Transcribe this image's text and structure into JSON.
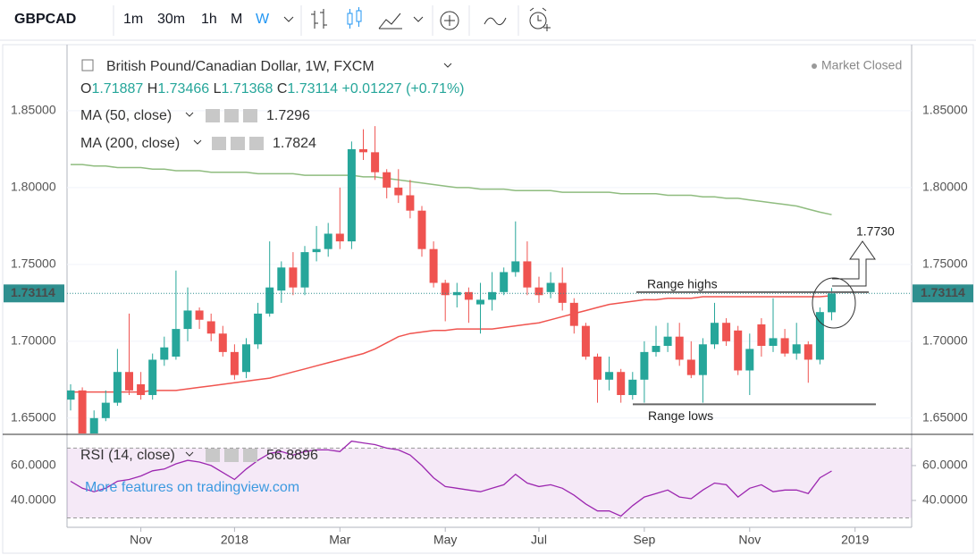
{
  "toolbar": {
    "symbol": "GBPCAD",
    "intervals": [
      "1m",
      "30m",
      "1h",
      "M",
      "W"
    ]
  },
  "legend": {
    "o": "O",
    "h": "H",
    "l": "L",
    "c": "C",
    "change": "+0.01227",
    "change_pct": "(+0.71%)",
    "status": "Market Closed"
  },
  "chart_data": [
    {
      "type": "candlestick",
      "title": "British Pound/Canadian Dollar, 1W, FXCM",
      "categories": [
        null,
        null,
        null,
        null,
        null,
        null,
        "Nov",
        null,
        null,
        null,
        null,
        null,
        null,
        null,
        "2018",
        null,
        null,
        null,
        null,
        null,
        null,
        null,
        null,
        "Mar",
        null,
        null,
        null,
        null,
        null,
        null,
        null,
        null,
        "May",
        null,
        null,
        null,
        null,
        null,
        null,
        null,
        "Jul",
        null,
        null,
        null,
        null,
        null,
        null,
        null,
        null,
        "Sep",
        null,
        null,
        null,
        null,
        null,
        null,
        null,
        null,
        "Nov",
        null,
        null,
        null,
        null,
        null,
        null,
        null,
        null,
        "2019"
      ],
      "open": [
        1.662,
        1.668,
        1.64,
        1.65,
        1.66,
        1.68,
        1.672,
        1.665,
        1.688,
        1.69,
        1.708,
        1.72,
        1.713,
        1.705,
        1.693,
        1.68,
        1.698,
        1.718,
        1.733,
        1.748,
        1.735,
        1.758,
        1.76,
        1.77,
        1.765,
        1.825,
        1.823,
        1.81,
        1.8,
        1.795,
        1.785,
        1.76,
        1.738,
        1.73,
        1.732,
        1.724,
        1.727,
        1.732,
        1.745,
        1.752,
        1.735,
        1.732,
        1.738,
        1.725,
        1.71,
        1.69,
        1.675,
        1.68,
        1.665,
        1.675,
        1.693,
        1.697,
        1.703,
        1.688,
        1.678,
        1.698,
        1.712,
        1.707,
        1.681,
        1.711,
        1.697,
        1.702,
        1.692,
        1.698,
        1.688,
        1.71887,
        null,
        null
      ],
      "high": [
        1.672,
        1.67,
        1.655,
        1.668,
        1.695,
        1.718,
        1.68,
        1.692,
        1.703,
        1.746,
        1.735,
        1.722,
        1.718,
        1.71,
        1.698,
        1.702,
        1.725,
        1.765,
        1.752,
        1.758,
        1.762,
        1.775,
        1.777,
        1.8,
        1.83,
        1.838,
        1.84,
        1.812,
        1.812,
        1.805,
        1.788,
        1.765,
        1.74,
        1.738,
        1.735,
        1.738,
        1.745,
        1.748,
        1.778,
        1.765,
        1.742,
        1.745,
        1.748,
        1.728,
        1.712,
        1.692,
        1.69,
        1.682,
        1.68,
        1.7,
        1.71,
        1.712,
        1.712,
        1.7,
        1.702,
        1.725,
        1.715,
        1.71,
        1.705,
        1.715,
        1.728,
        1.708,
        1.712,
        1.7,
        1.722,
        1.73466,
        null,
        null
      ],
      "low": [
        1.655,
        1.632,
        1.635,
        1.648,
        1.658,
        1.665,
        1.662,
        1.662,
        1.684,
        1.688,
        1.7,
        1.708,
        1.7,
        1.69,
        1.675,
        1.676,
        1.695,
        1.716,
        1.725,
        1.73,
        1.73,
        1.752,
        1.755,
        1.76,
        1.76,
        1.818,
        1.805,
        1.793,
        1.79,
        1.78,
        1.755,
        1.735,
        1.713,
        1.722,
        1.712,
        1.705,
        1.72,
        1.73,
        1.742,
        1.73,
        1.725,
        1.728,
        1.72,
        1.705,
        1.688,
        1.66,
        1.668,
        1.66,
        1.662,
        1.66,
        1.69,
        1.693,
        1.684,
        1.676,
        1.66,
        1.695,
        1.697,
        1.678,
        1.665,
        1.69,
        1.693,
        1.69,
        1.688,
        1.673,
        1.685,
        1.71368,
        null,
        null
      ],
      "close": [
        1.668,
        1.64,
        1.65,
        1.66,
        1.68,
        1.668,
        1.665,
        1.688,
        1.696,
        1.708,
        1.72,
        1.714,
        1.705,
        1.693,
        1.678,
        1.698,
        1.718,
        1.735,
        1.748,
        1.735,
        1.758,
        1.76,
        1.77,
        1.765,
        1.825,
        1.823,
        1.81,
        1.8,
        1.795,
        1.785,
        1.76,
        1.738,
        1.73,
        1.732,
        1.727,
        1.727,
        1.732,
        1.745,
        1.752,
        1.735,
        1.73,
        1.738,
        1.725,
        1.71,
        1.69,
        1.675,
        1.68,
        1.665,
        1.675,
        1.693,
        1.697,
        1.703,
        1.688,
        1.678,
        1.698,
        1.712,
        1.7,
        1.681,
        1.695,
        1.697,
        1.702,
        1.692,
        1.698,
        1.688,
        1.719,
        1.73114,
        null,
        null
      ],
      "up_color": "#26a69a",
      "down_color": "#ef5350",
      "series": [
        {
          "name": "MA (50, close)",
          "color": "#f0544f",
          "values": [
            1.667,
            1.667,
            1.667,
            1.667,
            1.667,
            1.667,
            1.667,
            1.668,
            1.668,
            1.668,
            1.669,
            1.67,
            1.671,
            1.672,
            1.673,
            1.674,
            1.675,
            1.676,
            1.678,
            1.68,
            1.682,
            1.684,
            1.686,
            1.688,
            1.69,
            1.692,
            1.695,
            1.699,
            1.703,
            1.705,
            1.706,
            1.707,
            1.707,
            1.708,
            1.708,
            1.708,
            1.708,
            1.709,
            1.71,
            1.711,
            1.712,
            1.714,
            1.716,
            1.718,
            1.72,
            1.722,
            1.724,
            1.725,
            1.726,
            1.727,
            1.727,
            1.728,
            1.728,
            1.728,
            1.729,
            1.729,
            1.729,
            1.729,
            1.729,
            1.729,
            1.729,
            1.729,
            1.729,
            1.729,
            1.729,
            1.7296,
            null,
            null
          ]
        },
        {
          "name": "MA (200, close)",
          "color": "#8fbc7f",
          "values": [
            1.815,
            1.815,
            1.814,
            1.814,
            1.813,
            1.813,
            1.813,
            1.812,
            1.812,
            1.811,
            1.811,
            1.811,
            1.81,
            1.81,
            1.81,
            1.81,
            1.809,
            1.809,
            1.809,
            1.809,
            1.808,
            1.808,
            1.808,
            1.808,
            1.808,
            1.807,
            1.807,
            1.806,
            1.805,
            1.804,
            1.803,
            1.802,
            1.801,
            1.8,
            1.8,
            1.799,
            1.799,
            1.799,
            1.798,
            1.798,
            1.798,
            1.798,
            1.797,
            1.797,
            1.797,
            1.797,
            1.797,
            1.796,
            1.796,
            1.796,
            1.796,
            1.795,
            1.795,
            1.795,
            1.794,
            1.794,
            1.793,
            1.793,
            1.792,
            1.791,
            1.79,
            1.789,
            1.788,
            1.786,
            1.784,
            1.7824,
            null,
            null
          ]
        }
      ],
      "ylim": [
        1.64,
        1.893
      ],
      "yticks": [
        {
          "value": 1.85,
          "label": "1.85000"
        },
        {
          "value": 1.8,
          "label": "1.80000"
        },
        {
          "value": 1.75,
          "label": "1.75000"
        },
        {
          "value": 1.7,
          "label": "1.70000"
        },
        {
          "value": 1.65,
          "label": "1.65000"
        }
      ],
      "grid": true,
      "last_price": 1.73114,
      "last_price_color": "#2f8f8f",
      "annotations": [
        {
          "text": "Range  highs",
          "value": 1.732
        },
        {
          "text": "Range lows",
          "value": 1.659
        },
        {
          "text": "1.7730"
        }
      ]
    },
    {
      "type": "line",
      "watermark": "More features on tradingview.com",
      "series": [
        {
          "name": "RSI (14, close)",
          "color": "#9c27b0",
          "values": [
            51,
            47,
            45,
            47,
            51,
            52,
            54,
            57,
            58,
            61,
            63,
            62,
            60,
            56,
            52,
            58,
            63,
            67,
            68,
            66,
            68,
            69,
            69,
            68,
            74,
            73,
            72,
            70,
            69,
            66,
            60,
            53,
            48,
            47,
            46,
            45,
            47,
            49,
            55,
            50,
            48,
            49,
            47,
            43,
            38,
            34,
            34,
            31,
            37,
            42,
            44,
            46,
            42,
            41,
            46,
            50,
            49,
            42,
            47,
            49,
            45,
            46,
            46,
            44,
            53,
            56.8896,
            null,
            null
          ]
        }
      ],
      "ylim": [
        24.6,
        77.4
      ],
      "yticks": [
        {
          "value": 60,
          "label": "60.0000"
        },
        {
          "value": 40,
          "label": "40.0000"
        }
      ],
      "bands": [
        70,
        30
      ],
      "band_color": "#9c27b0"
    }
  ]
}
